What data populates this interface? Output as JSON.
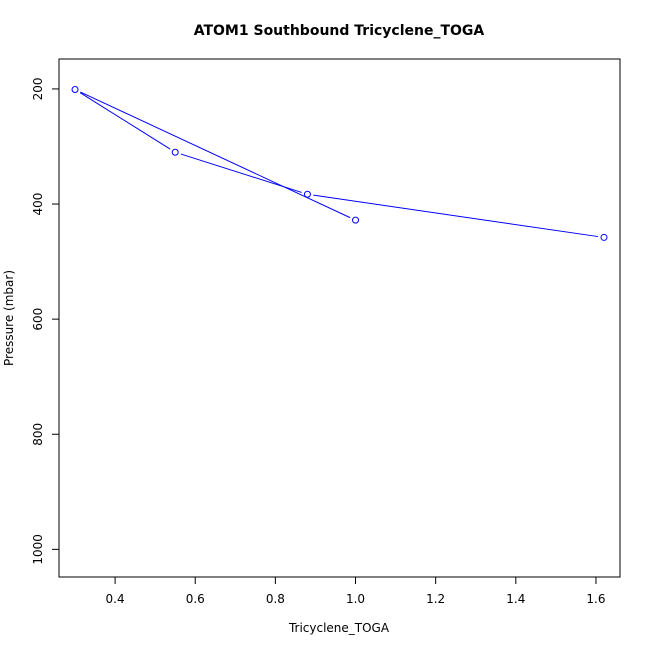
{
  "chart_data": {
    "type": "line",
    "title": "ATOM1 Southbound Tricyclene_TOGA",
    "xlabel": "Tricyclene_TOGA",
    "ylabel": "Pressure (mbar)",
    "xlim": [
      0.26,
      1.66
    ],
    "ylim": [
      1048,
      148
    ],
    "y_reversed": true,
    "x_ticks": [
      0.4,
      0.6,
      0.8,
      1.0,
      1.2,
      1.4,
      1.6
    ],
    "x_tick_labels": [
      "0.4",
      "0.6",
      "0.8",
      "1.0",
      "1.2",
      "1.4",
      "1.6"
    ],
    "y_ticks": [
      200,
      400,
      600,
      800,
      1000
    ],
    "y_tick_labels": [
      "200",
      "400",
      "600",
      "800",
      "1000"
    ],
    "series": [
      {
        "marker": "open-circle",
        "color": "#0000ff",
        "points": [
          {
            "x": 1.0,
            "y": 428
          },
          {
            "x": 0.3,
            "y": 201
          },
          {
            "x": 0.55,
            "y": 310
          },
          {
            "x": 0.88,
            "y": 383
          },
          {
            "x": 1.62,
            "y": 458
          }
        ]
      }
    ],
    "grid": false,
    "legend": "none"
  }
}
